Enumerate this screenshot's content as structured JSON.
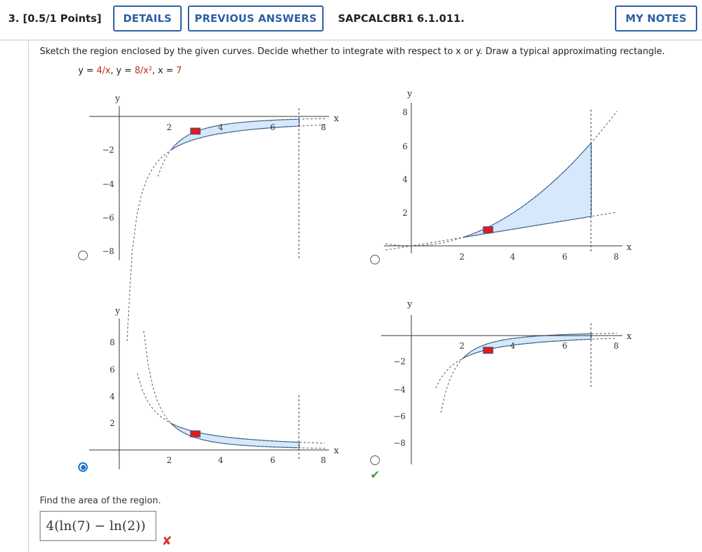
{
  "header": {
    "question_label": "3.  [0.5/1 Points]",
    "details_label": "DETAILS",
    "previous_label": "PREVIOUS ANSWERS",
    "question_id": "SAPCALCBR1 6.1.011.",
    "notes_label": "MY NOTES"
  },
  "question": {
    "prompt": "Sketch the region enclosed by the given curves. Decide whether to integrate with respect to x or y. Draw a typical approximating rectangle.",
    "eq_prefix1": "y = ",
    "eq_red1": "4/x",
    "eq_mid1": ",  y = ",
    "eq_red2": "8/x²",
    "eq_mid2": ",  x = ",
    "eq_red3": "7"
  },
  "graphs": [
    {
      "id": "A",
      "xlabel": "x",
      "ylabel": "y",
      "xticks": [
        "2",
        "4",
        "6",
        "8"
      ],
      "yticks": [
        "−2",
        "−4",
        "−6",
        "−8"
      ],
      "selected": false
    },
    {
      "id": "B",
      "xlabel": "x",
      "ylabel": "y",
      "xticks": [
        "2",
        "4",
        "6",
        "8"
      ],
      "yticks": [
        "8",
        "6",
        "4",
        "2"
      ],
      "selected": false
    },
    {
      "id": "C",
      "xlabel": "x",
      "ylabel": "y",
      "xticks": [
        "2",
        "4",
        "6",
        "8"
      ],
      "yticks": [
        "8",
        "6",
        "4",
        "2"
      ],
      "selected": true
    },
    {
      "id": "D",
      "xlabel": "x",
      "ylabel": "y",
      "xticks": [
        "2",
        "4",
        "6",
        "8"
      ],
      "yticks": [
        "−2",
        "−4",
        "−6",
        "−8"
      ],
      "selected": false
    }
  ],
  "colors": {
    "fill": "#d6e8fb",
    "stroke": "#3b6fa8",
    "rect": "#e51b1b",
    "accent": "#2a5fa4"
  },
  "answer": {
    "find_label": "Find the area of the region.",
    "value": "4(ln(7) − ln(2))",
    "status": "incorrect"
  }
}
